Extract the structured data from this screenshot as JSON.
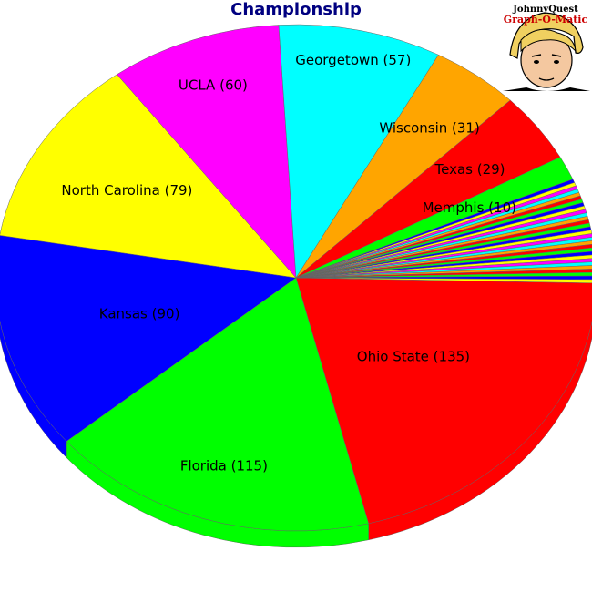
{
  "chart_data": {
    "type": "pie",
    "title": "Championship",
    "style": "3d-tilted",
    "slices": [
      {
        "label": "Ohio State",
        "value": 135,
        "color": "#ff0000"
      },
      {
        "label": "Florida",
        "value": 115,
        "color": "#00ff00"
      },
      {
        "label": "Kansas",
        "value": 90,
        "color": "#0000ff"
      },
      {
        "label": "North Carolina",
        "value": 79,
        "color": "#ffff00"
      },
      {
        "label": "UCLA",
        "value": 60,
        "color": "#ff00ff"
      },
      {
        "label": "Georgetown",
        "value": 57,
        "color": "#00ffff"
      },
      {
        "label": "Wisconsin",
        "value": 31,
        "color": "#ffa500"
      },
      {
        "label": "Texas",
        "value": 29,
        "color": "#ff0000"
      },
      {
        "label": "Memphis",
        "value": 10,
        "color": "#00ff00"
      }
    ],
    "unlabeled_small_slices": {
      "count": 30,
      "colors": [
        "#0000ff",
        "#ffff00",
        "#ff00ff",
        "#00ffff",
        "#ffa500",
        "#ff0000",
        "#00ff00"
      ]
    }
  },
  "logo": {
    "line1": "JohnnyQuest",
    "line2": "Graph-O-Matic"
  }
}
